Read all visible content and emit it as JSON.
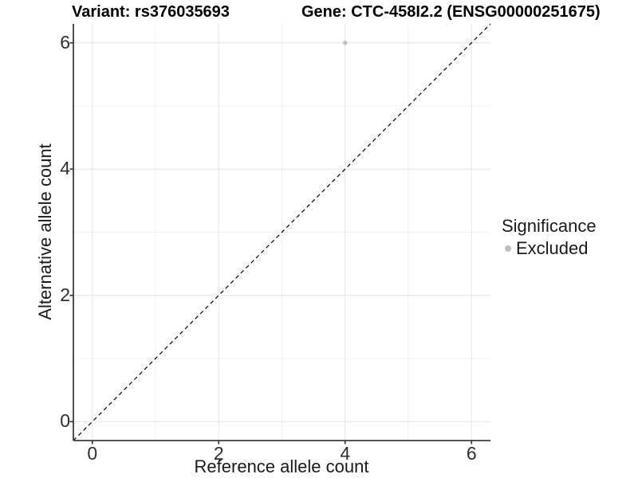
{
  "titles": {
    "variant": "Variant: rs376035693",
    "gene": "Gene: CTC-458I2.2 (ENSG00000251675)"
  },
  "chart_data": {
    "type": "scatter",
    "title_left": "Variant: rs376035693",
    "title_right": "Gene: CTC-458I2.2 (ENSG00000251675)",
    "xlabel": "Reference allele count",
    "ylabel": "Alternative allele count",
    "xlim": [
      -0.3,
      6.3
    ],
    "ylim": [
      -0.3,
      6.3
    ],
    "x_ticks": [
      0,
      2,
      4,
      6
    ],
    "y_ticks": [
      0,
      2,
      4,
      6
    ],
    "grid_major": [
      0,
      2,
      4,
      6
    ],
    "grid_minor": [
      1,
      3,
      5
    ],
    "grid": true,
    "points": [
      {
        "x": 4,
        "y": 6,
        "significance": "Excluded",
        "color": "#bebebe"
      }
    ],
    "identity_line": {
      "slope": 1,
      "intercept": 0,
      "style": "dashed",
      "color": "#000000"
    },
    "legend": {
      "position": "right",
      "title": "Significance",
      "entries": [
        {
          "label": "Excluded",
          "color": "#bebebe"
        }
      ]
    },
    "colors": {
      "grid_major": "#e4e4e4",
      "grid_minor": "#f0f0f0",
      "axis_line": "#3c3c3c",
      "point": "#bebebe",
      "background": "#ffffff"
    }
  }
}
